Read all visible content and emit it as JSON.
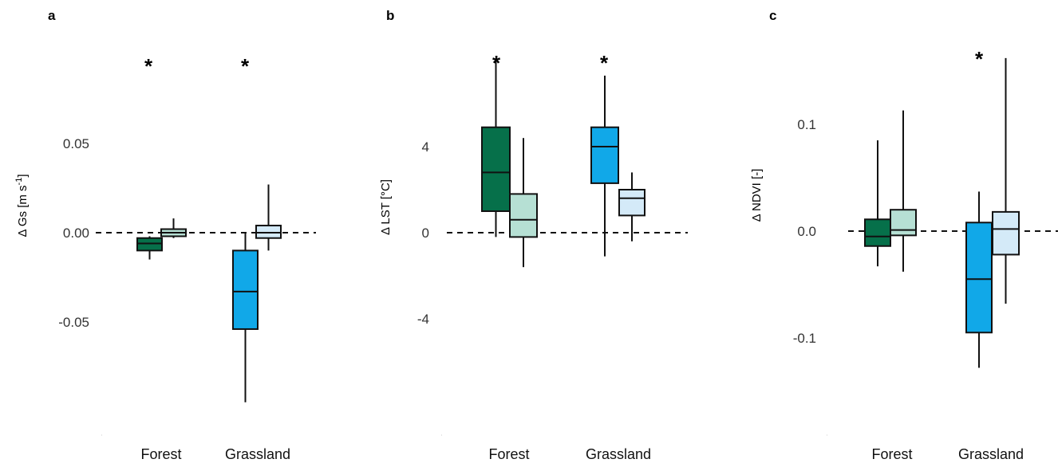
{
  "chart_data": [
    {
      "type": "box",
      "panel": "a",
      "ylabel": "Δ Gs [m s-1]",
      "ylabel_parts": [
        "Δ Gs",
        "[m s",
        "-1",
        "]"
      ],
      "yticks": [
        0.05,
        0.0,
        -0.05
      ],
      "ytick_labels": [
        "0.05",
        "0.00",
        "-0.05"
      ],
      "ylim": [
        -0.1,
        0.12
      ],
      "reference_line": 0,
      "categories": [
        "Forest",
        "Grassland"
      ],
      "significance": [
        "*",
        "*"
      ],
      "boxes": [
        {
          "category": "Forest",
          "variant": "dark",
          "min": -0.015,
          "q1": -0.01,
          "median": -0.006,
          "q3": -0.003,
          "max": -0.002
        },
        {
          "category": "Forest",
          "variant": "light",
          "min": -0.003,
          "q1": -0.002,
          "median": 0.0,
          "q3": 0.002,
          "max": 0.008
        },
        {
          "category": "Grassland",
          "variant": "dark",
          "min": -0.095,
          "q1": -0.054,
          "median": -0.033,
          "q3": -0.01,
          "max": 0.0
        },
        {
          "category": "Grassland",
          "variant": "light",
          "min": -0.01,
          "q1": -0.003,
          "median": 0.0,
          "q3": 0.004,
          "max": 0.027
        }
      ]
    },
    {
      "type": "box",
      "panel": "b",
      "ylabel": "Δ LST [°C]",
      "ylabel_parts": [
        "Δ LST",
        "[°C]"
      ],
      "yticks": [
        4,
        0,
        -4
      ],
      "ytick_labels": [
        "4",
        "0",
        "-4"
      ],
      "ylim": [
        -9.5,
        10
      ],
      "reference_line": 0,
      "categories": [
        "Forest",
        "Grassland"
      ],
      "significance": [
        "*",
        "*"
      ],
      "boxes": [
        {
          "category": "Forest",
          "variant": "dark",
          "min": -0.2,
          "q1": 1.0,
          "median": 2.8,
          "q3": 4.9,
          "max": 8.1
        },
        {
          "category": "Forest",
          "variant": "light",
          "min": -1.6,
          "q1": -0.2,
          "median": 0.6,
          "q3": 1.8,
          "max": 4.4
        },
        {
          "category": "Grassland",
          "variant": "dark",
          "min": -1.1,
          "q1": 2.3,
          "median": 4.0,
          "q3": 4.9,
          "max": 7.3
        },
        {
          "category": "Grassland",
          "variant": "light",
          "min": -0.4,
          "q1": 0.8,
          "median": 1.6,
          "q3": 2.0,
          "max": 2.8
        }
      ]
    },
    {
      "type": "box",
      "panel": "c",
      "ylabel": "Δ NDVI [-]",
      "ylabel_parts": [
        "Δ NDVI",
        "[-]"
      ],
      "yticks": [
        0.1,
        0.0,
        -0.1
      ],
      "ytick_labels": [
        "0.1",
        "0.0",
        "-0.1"
      ],
      "ylim": [
        -0.205,
        0.19
      ],
      "reference_line": 0,
      "categories": [
        "Forest",
        "Grassland"
      ],
      "significance": [
        "",
        "*"
      ],
      "boxes": [
        {
          "category": "Forest",
          "variant": "dark",
          "min": -0.033,
          "q1": -0.014,
          "median": -0.005,
          "q3": 0.011,
          "max": 0.085
        },
        {
          "category": "Forest",
          "variant": "light",
          "min": -0.038,
          "q1": -0.004,
          "median": 0.001,
          "q3": 0.02,
          "max": 0.113
        },
        {
          "category": "Grassland",
          "variant": "dark",
          "min": -0.128,
          "q1": -0.095,
          "median": -0.045,
          "q3": 0.008,
          "max": 0.037
        },
        {
          "category": "Grassland",
          "variant": "light",
          "min": -0.068,
          "q1": -0.022,
          "median": 0.002,
          "q3": 0.018,
          "max": 0.162
        }
      ]
    }
  ],
  "colors": {
    "forest_dark": "#06704a",
    "forest_light": "#b6e0d4",
    "grassland_dark": "#11a8e8",
    "grassland_light": "#d4eaf8",
    "outline": "#111111"
  }
}
